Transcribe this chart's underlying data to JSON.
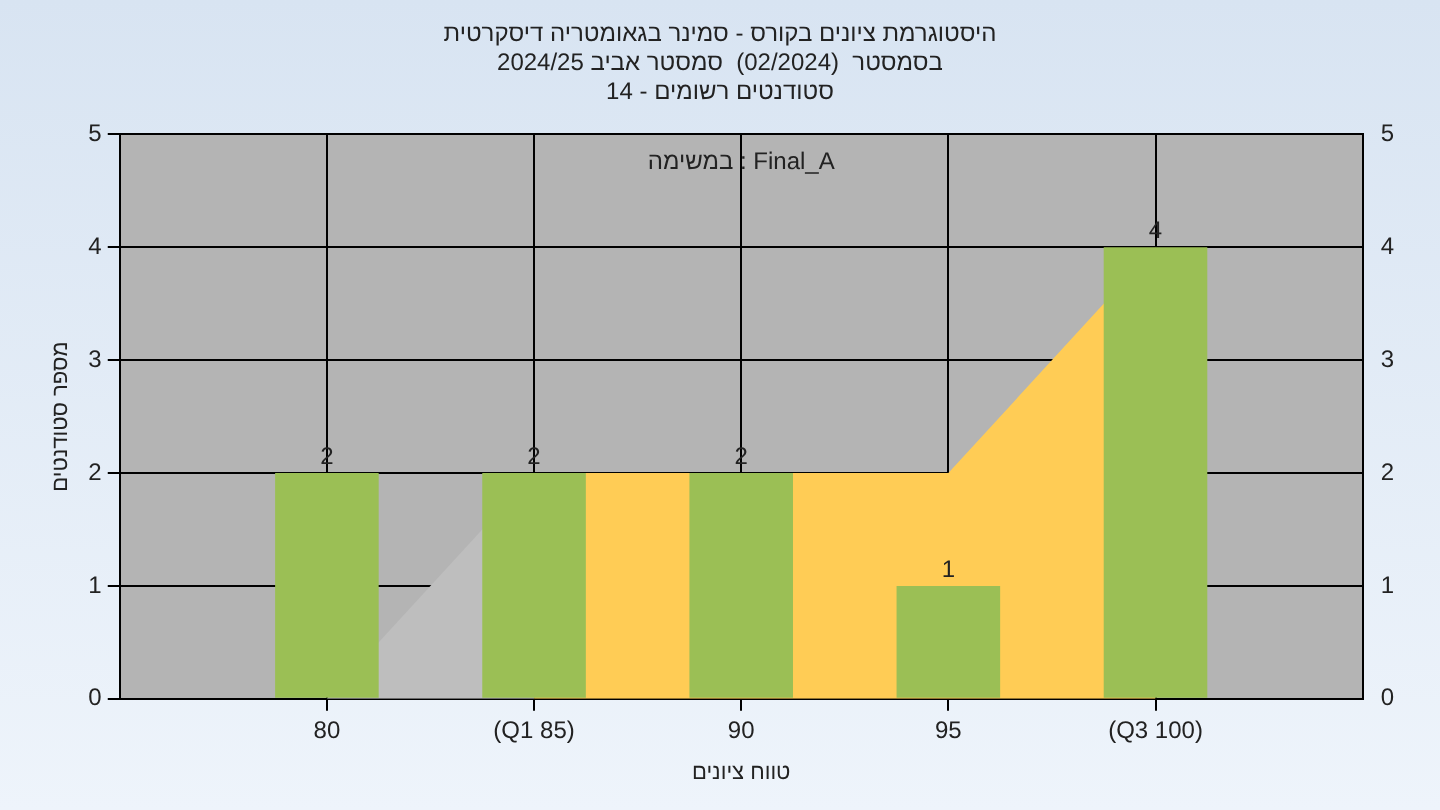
{
  "chart_data": {
    "type": "bar",
    "title": "היסטוגרמת ציונים בקורס - סמינר בגאומטריה דיסקרטית",
    "subtitle": "בסמסטר  (02/2024)  סמסטר אביב 2024/25\nסטודנטים רשומים - 14",
    "xlabel": "טווח ציונים",
    "ylabel": "מספר סטודנטים",
    "annotations": [
      "במשימה : Final_A"
    ],
    "categories": [
      "80",
      "(Q1 85)",
      "90",
      "95",
      "(Q3 100)"
    ],
    "series": [
      {
        "type": "area",
        "color": "#bebebe",
        "values": [
          0,
          2,
          null,
          null,
          null
        ]
      },
      {
        "type": "area",
        "color": "#ffcc55",
        "values": [
          null,
          2,
          2,
          2,
          4
        ]
      },
      {
        "color": "#9bbf55",
        "values": [
          2,
          2,
          2,
          1,
          4
        ],
        "value_labels": [
          "2",
          "2",
          "2",
          "1",
          "4"
        ]
      }
    ],
    "ylim": [
      0,
      5
    ],
    "yticks": [
      0,
      1,
      2,
      3,
      4,
      5
    ],
    "y2lim": [
      0,
      5
    ],
    "y2ticks": [
      0,
      1,
      2,
      3,
      4,
      5
    ],
    "grid": true,
    "legend": false
  }
}
